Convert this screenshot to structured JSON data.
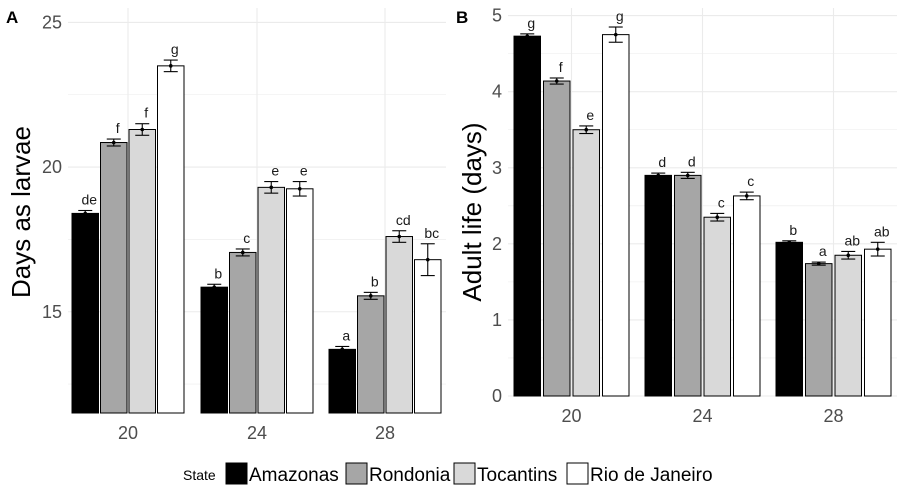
{
  "chart_data": [
    {
      "type": "bar",
      "panel": "A",
      "ylabel": "Days as larvae",
      "xlabel": "",
      "categories": [
        "20",
        "24",
        "28"
      ],
      "ylim": [
        11.5,
        25.5
      ],
      "yticks": [
        15,
        20,
        25
      ],
      "grid": true,
      "series": [
        {
          "name": "Amazonas",
          "values": [
            18.4,
            15.85,
            13.7
          ],
          "errors": [
            0.1,
            0.1,
            0.1
          ],
          "letters": [
            "de",
            "b",
            "a"
          ]
        },
        {
          "name": "Rondonia",
          "values": [
            20.85,
            17.05,
            15.55
          ],
          "errors": [
            0.12,
            0.12,
            0.12
          ],
          "letters": [
            "f",
            "c",
            "b"
          ]
        },
        {
          "name": "Tocantins",
          "values": [
            21.3,
            19.3,
            17.6
          ],
          "errors": [
            0.2,
            0.2,
            0.2
          ],
          "letters": [
            "f",
            "e",
            "cd"
          ]
        },
        {
          "name": "Rio de Janeiro",
          "values": [
            23.5,
            19.25,
            16.8
          ],
          "errors": [
            0.2,
            0.25,
            0.55
          ],
          "letters": [
            "g",
            "e",
            "bc"
          ]
        }
      ]
    },
    {
      "type": "bar",
      "panel": "B",
      "ylabel": "Adult life (days)",
      "xlabel": "",
      "categories": [
        "20",
        "24",
        "28"
      ],
      "ylim": [
        0,
        5.1
      ],
      "yticks": [
        0,
        1,
        2,
        3,
        4,
        5
      ],
      "grid": true,
      "series": [
        {
          "name": "Amazonas",
          "values": [
            4.73,
            2.9,
            2.02
          ],
          "errors": [
            0.03,
            0.03,
            0.02
          ],
          "letters": [
            "g",
            "d",
            "b"
          ]
        },
        {
          "name": "Rondonia",
          "values": [
            4.14,
            2.9,
            1.74
          ],
          "errors": [
            0.04,
            0.04,
            0.02
          ],
          "letters": [
            "f",
            "d",
            "a"
          ]
        },
        {
          "name": "Tocantins",
          "values": [
            3.5,
            2.35,
            1.85
          ],
          "errors": [
            0.05,
            0.05,
            0.05
          ],
          "letters": [
            "e",
            "c",
            "ab"
          ]
        },
        {
          "name": "Rio de Janeiro",
          "values": [
            4.75,
            2.63,
            1.93
          ],
          "errors": [
            0.1,
            0.05,
            0.09
          ],
          "letters": [
            "g",
            "c",
            "ab"
          ]
        }
      ]
    }
  ],
  "legend": {
    "title": "State",
    "position": "bottom",
    "items": [
      {
        "label": "Amazonas",
        "color": "#000000"
      },
      {
        "label": "Rondonia",
        "color": "#a6a6a6"
      },
      {
        "label": "Tocantins",
        "color": "#d9d9d9"
      },
      {
        "label": "Rio de Janeiro",
        "color": "#ffffff"
      }
    ]
  },
  "colors": {
    "grid": "#ebebeb",
    "bar_stroke": "#000000",
    "axis_text": "#4d4d4d"
  }
}
